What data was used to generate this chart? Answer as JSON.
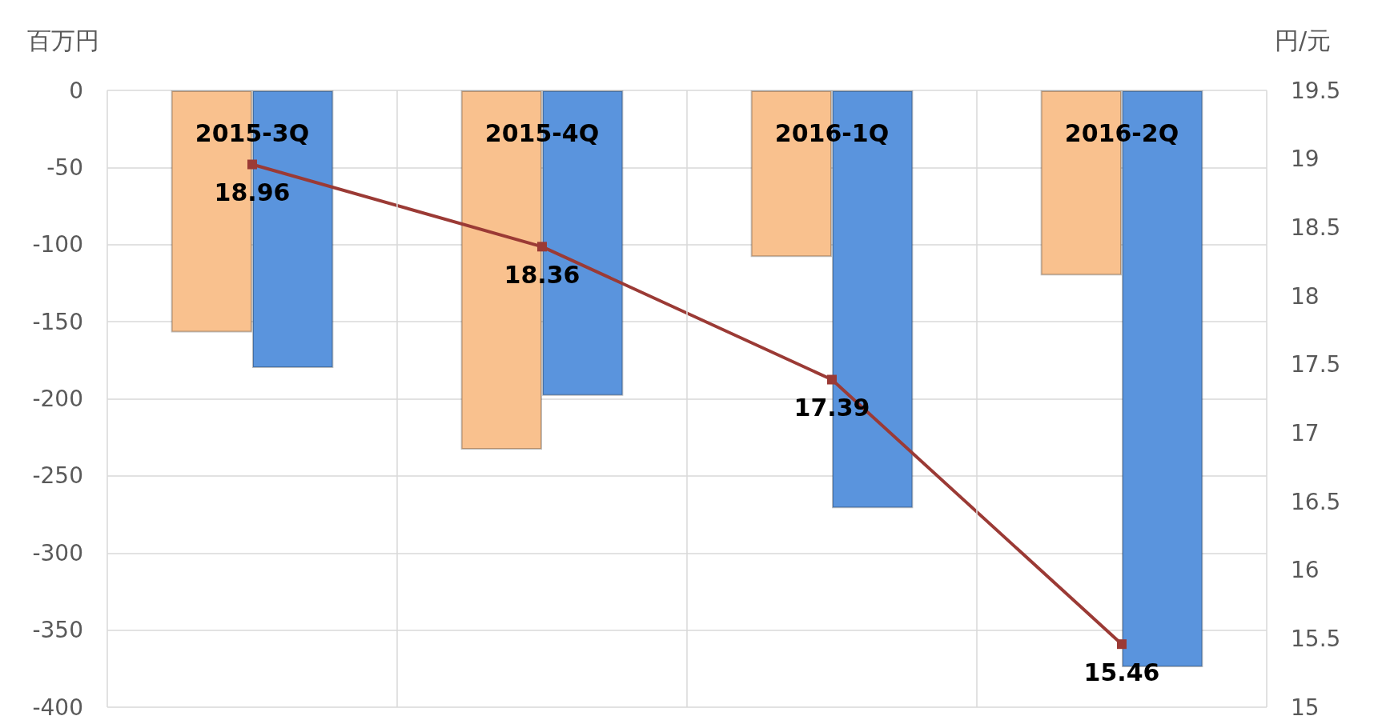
{
  "chart_data": {
    "type": "bar",
    "ylabel": "百万円",
    "y2label": "円/元",
    "categories": [
      "2015-3Q",
      "2015-4Q",
      "2016-1Q",
      "2016-2Q"
    ],
    "series": [
      {
        "color": "#f9c18e",
        "values": [
          -157,
          -233,
          -108,
          -120
        ]
      },
      {
        "color": "#5a94dd",
        "values": [
          -180,
          -198,
          -271,
          -374
        ]
      },
      {
        "type": "line",
        "axis": "y2",
        "color": "#9b3a35",
        "marker": "square",
        "values": [
          18.96,
          18.36,
          17.39,
          15.46
        ],
        "value_labels": [
          "18.96",
          "18.36",
          "17.39",
          "15.46"
        ]
      }
    ],
    "ylim": [
      -400,
      0
    ],
    "yticks": [
      -400,
      -350,
      -300,
      -250,
      -200,
      -150,
      -100,
      -50,
      0
    ],
    "y2lim": [
      15,
      19.5
    ],
    "y2ticks": [
      15,
      15.5,
      16,
      16.5,
      17,
      17.5,
      18,
      18.5,
      19,
      19.5
    ],
    "grid": true
  }
}
